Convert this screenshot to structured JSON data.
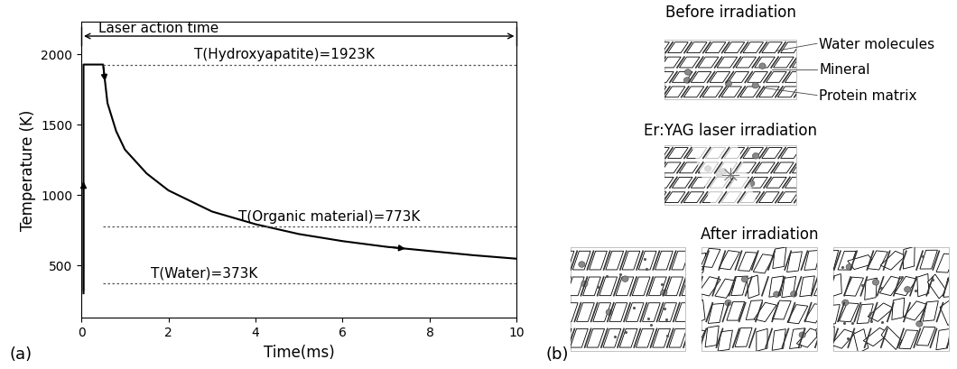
{
  "chart_data": {
    "type": "line",
    "label": "(a)",
    "x_label": "Time(ms)",
    "y_label": "Temperature (K)",
    "xlim": [
      0,
      10
    ],
    "ylim": [
      130,
      2230
    ],
    "xticks": [
      0,
      2,
      4,
      6,
      8,
      10
    ],
    "yticks": [
      500,
      1000,
      1500,
      2000
    ],
    "x": [
      0.05,
      0.05,
      0.5,
      0.6,
      0.8,
      1.0,
      1.5,
      2,
      3,
      4,
      5,
      6,
      7,
      8,
      9,
      10
    ],
    "values": [
      300,
      1923,
      1923,
      1650,
      1450,
      1320,
      1150,
      1030,
      880,
      790,
      720,
      670,
      630,
      600,
      570,
      545
    ],
    "color": "#000000",
    "reference_lines": [
      {
        "text": "T(Hydroxyapatite)=1923K",
        "value": 1923
      },
      {
        "text": "T(Organic material)=773K",
        "value": 773
      },
      {
        "text": "T(Water)=373K",
        "value": 373
      }
    ],
    "laser_action_time": {
      "text": "Laser action time",
      "start": 0,
      "end": 10
    }
  },
  "diagram": {
    "label": "(b)",
    "stages": [
      {
        "title": "Before irradiation"
      },
      {
        "title": "Er:YAG laser irradiation"
      },
      {
        "title": "After irradiation"
      }
    ],
    "legend_labels": [
      "Water molecules",
      "Mineral",
      "Protein matrix"
    ]
  }
}
